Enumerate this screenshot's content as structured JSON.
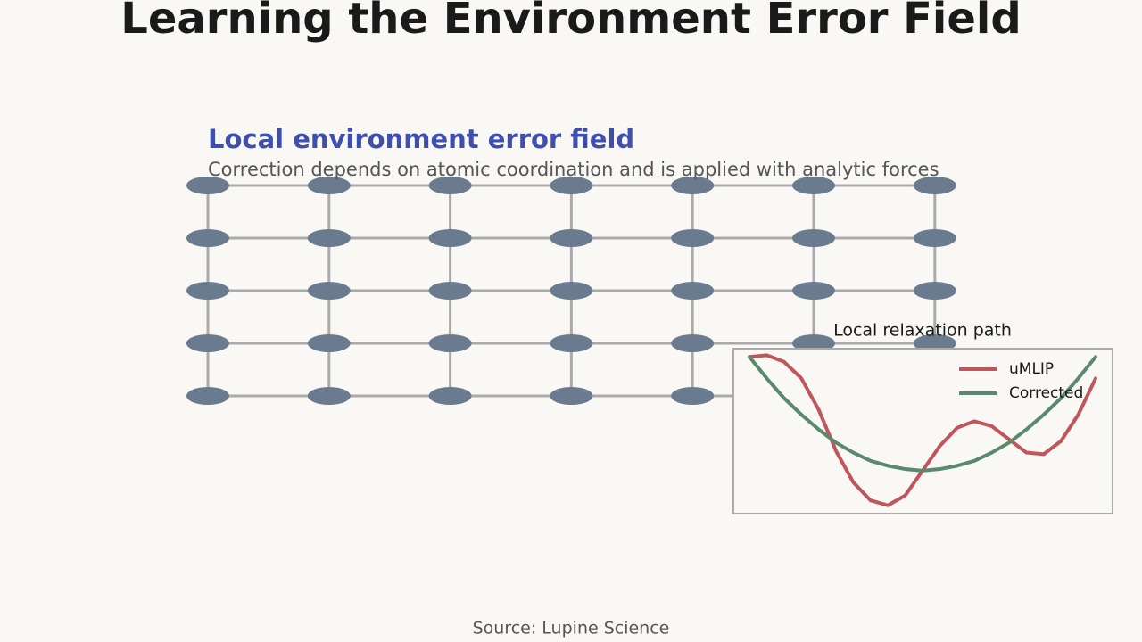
{
  "title": "Learning the Environment Error Field",
  "panel": {
    "title": "Local environment error field",
    "subtitle": "Correction depends on atomic coordination and is applied with analytic forces"
  },
  "chart_data": {
    "type": "line",
    "title": "Local relaxation path",
    "x": [
      0,
      0.5,
      1,
      1.5,
      2,
      2.5,
      3,
      3.5,
      4,
      4.5,
      5,
      5.5,
      6,
      6.5,
      7,
      7.5,
      8,
      8.5,
      9,
      9.5,
      10
    ],
    "series": [
      {
        "name": "uMLIP",
        "color": "#c0565b",
        "values": [
          0.95,
          0.96,
          0.92,
          0.82,
          0.63,
          0.38,
          0.19,
          0.08,
          0.05,
          0.11,
          0.26,
          0.41,
          0.52,
          0.56,
          0.53,
          0.45,
          0.37,
          0.36,
          0.44,
          0.6,
          0.82
        ]
      },
      {
        "name": "Corrected",
        "color": "#5a8a6e",
        "values": [
          0.95,
          0.82,
          0.7,
          0.6,
          0.51,
          0.43,
          0.37,
          0.32,
          0.29,
          0.27,
          0.26,
          0.27,
          0.29,
          0.32,
          0.37,
          0.43,
          0.51,
          0.6,
          0.7,
          0.82,
          0.95
        ]
      }
    ],
    "xlim": [
      0,
      10
    ],
    "ylim": [
      0,
      1
    ],
    "legend": "upper right"
  },
  "source": "Source: Lupine Science"
}
